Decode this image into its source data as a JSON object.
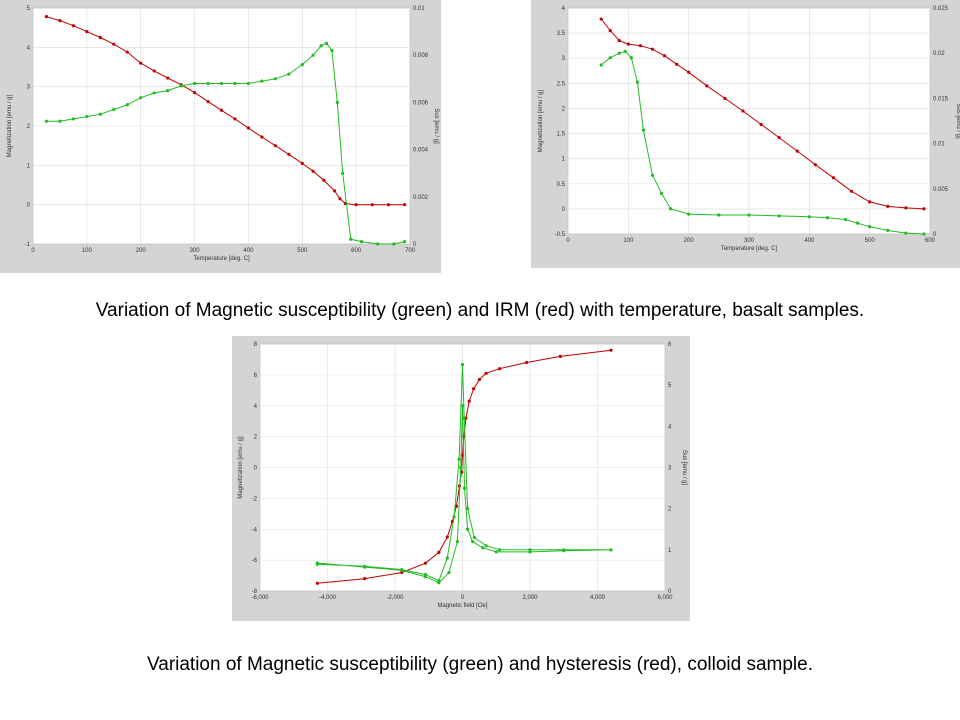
{
  "captions": {
    "top": "Variation of Magnetic susceptibility (green) and IRM (red) with temperature, basalt samples.",
    "bottom": "Variation of Magnetic susceptibility (green) and hysteresis (red), colloid sample."
  },
  "colors": {
    "red": "#c00000",
    "green": "#22bb22",
    "grid": "#dcdcdc",
    "panel": "#d4d4d4"
  },
  "chart_data": [
    {
      "type": "line",
      "xlabel": "Temperature [deg. C]",
      "ylabel": "Magnetization [emu / g]",
      "y2label": "Sus [emu / g]",
      "xlim": [
        0,
        700
      ],
      "ylim": [
        -1,
        5
      ],
      "y2lim": [
        0,
        0.01
      ],
      "xticks": [
        "0",
        "100",
        "200",
        "300",
        "400",
        "500",
        "600",
        "700"
      ],
      "yticks": [
        "-1",
        "0",
        "1",
        "2",
        "3",
        "4",
        "5"
      ],
      "y2ticks": [
        "0",
        "0.002",
        "0.004",
        "0.006",
        "0.008",
        "0.01"
      ],
      "grid": true,
      "series": [
        {
          "color": "red",
          "axis": "left",
          "x": [
            25,
            50,
            75,
            100,
            125,
            150,
            175,
            200,
            225,
            250,
            275,
            300,
            325,
            350,
            375,
            400,
            425,
            450,
            475,
            500,
            520,
            540,
            560,
            570,
            580,
            600,
            630,
            660,
            690
          ],
          "values": [
            4.78,
            4.68,
            4.55,
            4.4,
            4.25,
            4.08,
            3.88,
            3.6,
            3.4,
            3.22,
            3.05,
            2.85,
            2.62,
            2.4,
            2.18,
            1.95,
            1.72,
            1.5,
            1.28,
            1.05,
            0.85,
            0.62,
            0.35,
            0.15,
            0.03,
            0.0,
            0.0,
            0.0,
            0.0
          ]
        },
        {
          "color": "green",
          "axis": "right",
          "x": [
            25,
            50,
            75,
            100,
            125,
            150,
            175,
            200,
            225,
            250,
            275,
            300,
            325,
            350,
            375,
            400,
            425,
            450,
            475,
            500,
            520,
            535,
            545,
            555,
            565,
            575,
            590,
            610,
            640,
            670,
            690
          ],
          "values": [
            0.0052,
            0.0052,
            0.0053,
            0.0054,
            0.0055,
            0.0057,
            0.0059,
            0.0062,
            0.0064,
            0.0065,
            0.0067,
            0.0068,
            0.0068,
            0.0068,
            0.0068,
            0.0068,
            0.0069,
            0.007,
            0.0072,
            0.0076,
            0.008,
            0.0084,
            0.0085,
            0.0082,
            0.006,
            0.003,
            0.0002,
            0.0001,
            0.0,
            0.0,
            0.0001
          ]
        }
      ]
    },
    {
      "type": "line",
      "xlabel": "Temperature [deg. C]",
      "ylabel": "Magnetization [emu / g]",
      "y2label": "Sus [emu / g]",
      "xlim": [
        0,
        600
      ],
      "ylim": [
        -0.5,
        4
      ],
      "y2lim": [
        0,
        0.025
      ],
      "xticks": [
        "0",
        "100",
        "200",
        "300",
        "400",
        "500",
        "600"
      ],
      "yticks": [
        "-0.5",
        "0",
        "0.5",
        "1",
        "1.5",
        "2",
        "2.5",
        "3",
        "3.5",
        "4"
      ],
      "y2ticks": [
        "0",
        "0.005",
        "0.01",
        "0.015",
        "0.02",
        "0.025"
      ],
      "grid": true,
      "series": [
        {
          "color": "red",
          "axis": "left",
          "x": [
            55,
            70,
            85,
            100,
            120,
            140,
            160,
            180,
            200,
            230,
            260,
            290,
            320,
            350,
            380,
            410,
            440,
            470,
            500,
            530,
            560,
            590
          ],
          "values": [
            3.78,
            3.55,
            3.35,
            3.28,
            3.25,
            3.18,
            3.05,
            2.88,
            2.72,
            2.45,
            2.2,
            1.95,
            1.68,
            1.42,
            1.15,
            0.88,
            0.62,
            0.35,
            0.14,
            0.05,
            0.02,
            0.0
          ]
        },
        {
          "color": "green",
          "axis": "right",
          "x": [
            55,
            70,
            85,
            95,
            105,
            115,
            125,
            140,
            155,
            170,
            200,
            250,
            300,
            350,
            400,
            430,
            460,
            480,
            500,
            530,
            560,
            590
          ],
          "values": [
            0.0187,
            0.0195,
            0.02,
            0.0202,
            0.0195,
            0.0168,
            0.0115,
            0.0065,
            0.0045,
            0.0028,
            0.0022,
            0.0021,
            0.0021,
            0.002,
            0.0019,
            0.0018,
            0.0016,
            0.0012,
            0.0008,
            0.0004,
            0.0001,
            0.0
          ]
        }
      ]
    },
    {
      "type": "line",
      "xlabel": "Magnetic field [Oe]",
      "ylabel": "Magnetization [emu / g]",
      "y2label": "Sus [emu / g]",
      "xlim": [
        -6000,
        6000
      ],
      "ylim": [
        -8,
        8
      ],
      "y2lim": [
        0,
        6
      ],
      "xticks": [
        "-6,000",
        "-4,000",
        "-2,000",
        "0",
        "2,000",
        "4,000",
        "6,000"
      ],
      "yticks": [
        "-8",
        "-6",
        "-4",
        "-2",
        "0",
        "2",
        "4",
        "6",
        "8"
      ],
      "y2ticks": [
        "0",
        "1",
        "2",
        "3",
        "4",
        "5",
        "6"
      ],
      "grid": true,
      "series": [
        {
          "color": "red",
          "axis": "left",
          "x": [
            -4300,
            -2900,
            -1800,
            -1100,
            -700,
            -450,
            -300,
            -180,
            -90,
            -30,
            0,
            40,
            100,
            200,
            330,
            500,
            700,
            1100,
            1900,
            2900,
            4400
          ],
          "values": [
            -7.5,
            -7.2,
            -6.8,
            -6.2,
            -5.5,
            -4.5,
            -3.5,
            -2.5,
            -1.2,
            -0.3,
            0.8,
            2,
            3.2,
            4.3,
            5.1,
            5.7,
            6.1,
            6.4,
            6.8,
            7.2,
            7.6
          ]
        },
        {
          "color": "green",
          "axis": "right",
          "x": [
            -4300,
            -2900,
            -1800,
            -1100,
            -700,
            -450,
            -250,
            -100,
            0,
            50,
            150,
            350,
            700,
            1100,
            2000,
            3000,
            4400,
            3000,
            2000,
            1000,
            600,
            300,
            150,
            60,
            0,
            -50,
            -150,
            -400,
            -700,
            -1100,
            -1800,
            -2900,
            -4300
          ],
          "values": [
            0.65,
            0.6,
            0.52,
            0.4,
            0.25,
            0.8,
            1.8,
            3.2,
            5.5,
            4.2,
            2.0,
            1.3,
            1.1,
            1.0,
            1.0,
            1.0,
            1.0,
            0.98,
            0.95,
            0.95,
            1.05,
            1.2,
            1.5,
            2.5,
            4.5,
            3.0,
            1.2,
            0.45,
            0.2,
            0.35,
            0.5,
            0.58,
            0.68
          ]
        }
      ]
    }
  ]
}
